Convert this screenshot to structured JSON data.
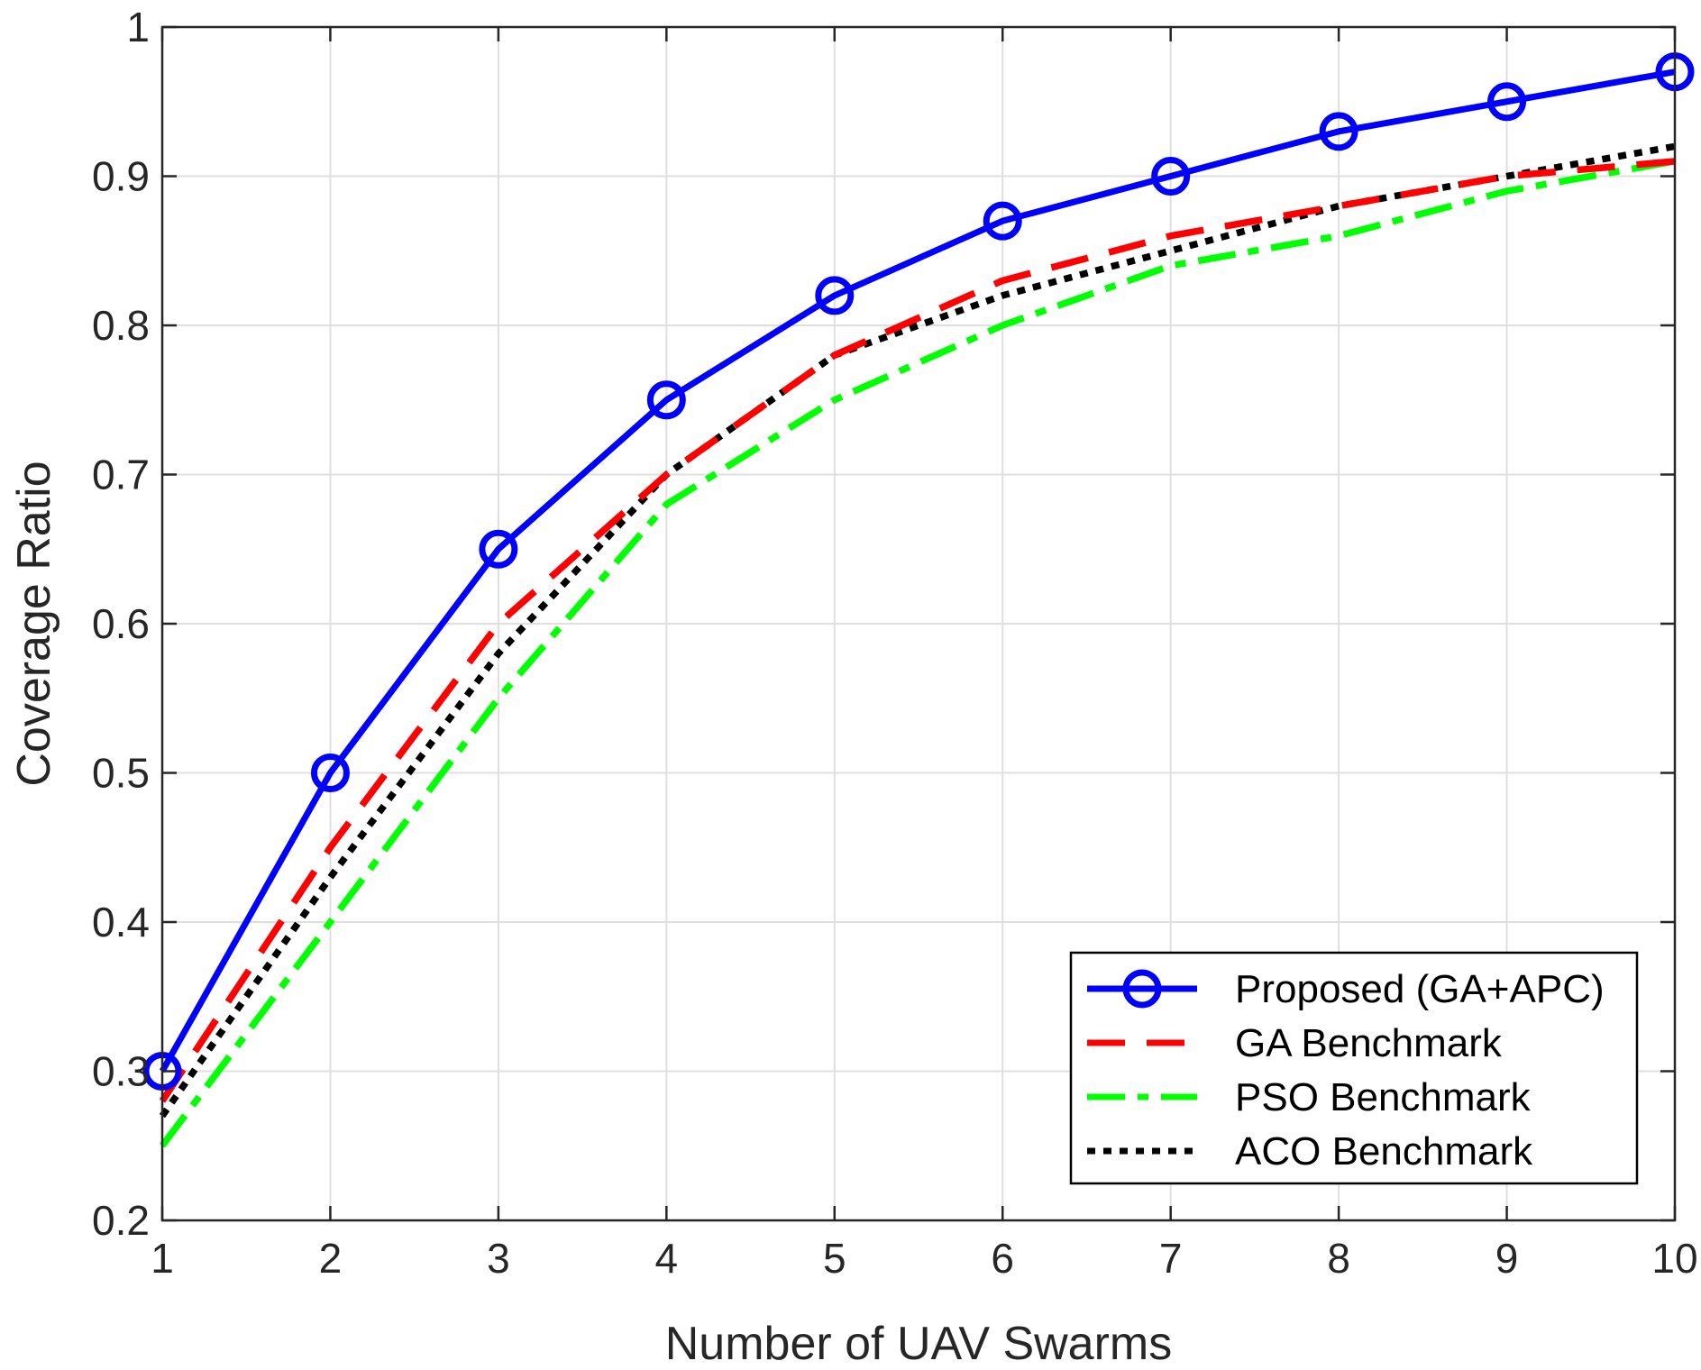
{
  "chart_data": {
    "type": "line",
    "title": "",
    "xlabel": "Number of UAV Swarms",
    "ylabel": "Coverage Ratio",
    "x": [
      1,
      2,
      3,
      4,
      5,
      6,
      7,
      8,
      9,
      10
    ],
    "xlim": [
      1,
      10
    ],
    "ylim": [
      0.2,
      1
    ],
    "xticks": [
      "1",
      "2",
      "3",
      "4",
      "5",
      "6",
      "7",
      "8",
      "9",
      "10"
    ],
    "yticks": [
      "0.2",
      "0.3",
      "0.4",
      "0.5",
      "0.6",
      "0.7",
      "0.8",
      "0.9",
      "1"
    ],
    "grid": true,
    "legend_position": "bottom-right",
    "series": [
      {
        "name": "Proposed (GA+APC)",
        "values": [
          0.3,
          0.5,
          0.65,
          0.75,
          0.82,
          0.87,
          0.9,
          0.93,
          0.95,
          0.97
        ],
        "color": "#0000ff",
        "style": "solid",
        "marker": "circle"
      },
      {
        "name": "GA Benchmark",
        "values": [
          0.28,
          0.45,
          0.6,
          0.7,
          0.78,
          0.83,
          0.86,
          0.88,
          0.9,
          0.91
        ],
        "color": "#ff0000",
        "style": "dashed",
        "marker": "none"
      },
      {
        "name": "PSO Benchmark",
        "values": [
          0.25,
          0.4,
          0.55,
          0.68,
          0.75,
          0.8,
          0.84,
          0.86,
          0.89,
          0.91
        ],
        "color": "#00ff00",
        "style": "dashdot",
        "marker": "none"
      },
      {
        "name": "ACO Benchmark",
        "values": [
          0.27,
          0.43,
          0.58,
          0.7,
          0.78,
          0.82,
          0.85,
          0.88,
          0.9,
          0.92
        ],
        "color": "#000000",
        "style": "dotted",
        "marker": "none"
      }
    ]
  }
}
